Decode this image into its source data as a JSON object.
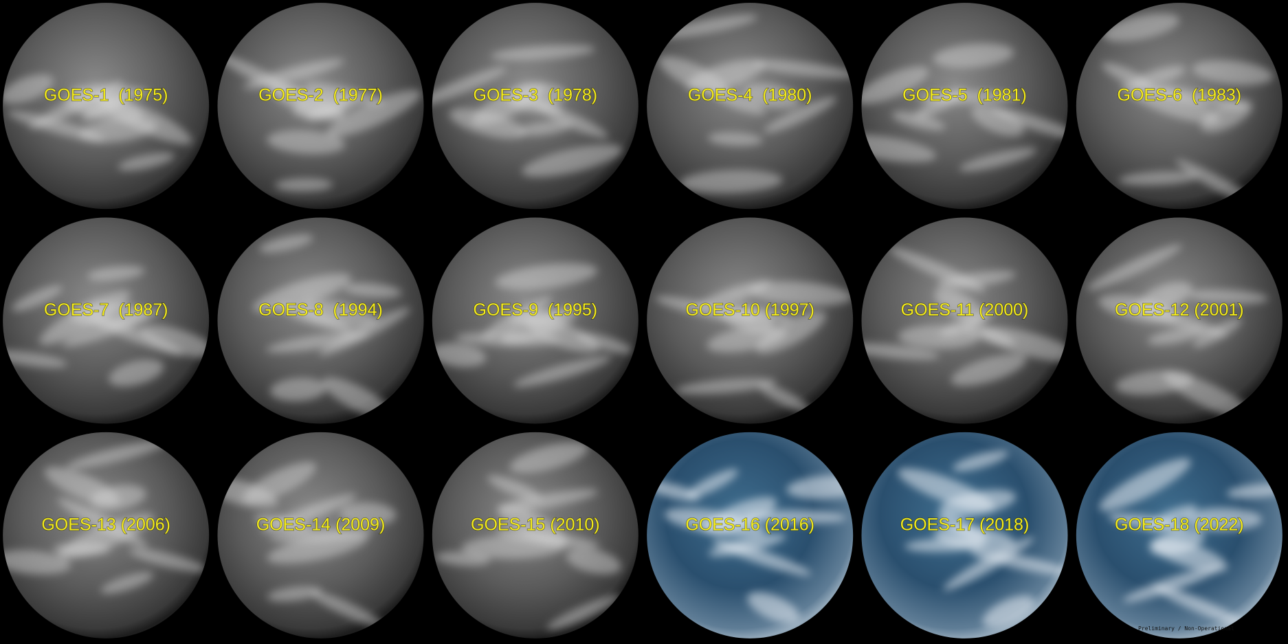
{
  "tiles": [
    {
      "label": "GOES-1  (1975)"
    },
    {
      "label": "GOES-2  (1977)"
    },
    {
      "label": "GOES-3  (1978)"
    },
    {
      "label": "GOES-4  (1980)"
    },
    {
      "label": "GOES-5  (1981)"
    },
    {
      "label": "GOES-6  (1983)"
    },
    {
      "label": "GOES-7  (1987)"
    },
    {
      "label": "GOES-8  (1994)"
    },
    {
      "label": "GOES-9  (1995)"
    },
    {
      "label": "GOES-10 (1997)"
    },
    {
      "label": "GOES-11 (2000)"
    },
    {
      "label": "GOES-12 (2001)"
    },
    {
      "label": "GOES-13 (2006)"
    },
    {
      "label": "GOES-14 (2009)"
    },
    {
      "label": "GOES-15 (2010)"
    },
    {
      "label": "GOES-16 (2016)"
    },
    {
      "label": "GOES-17 (2018)"
    },
    {
      "label": "GOES-18 (2022)"
    }
  ],
  "watermark": "Preliminary / Non-Operational"
}
